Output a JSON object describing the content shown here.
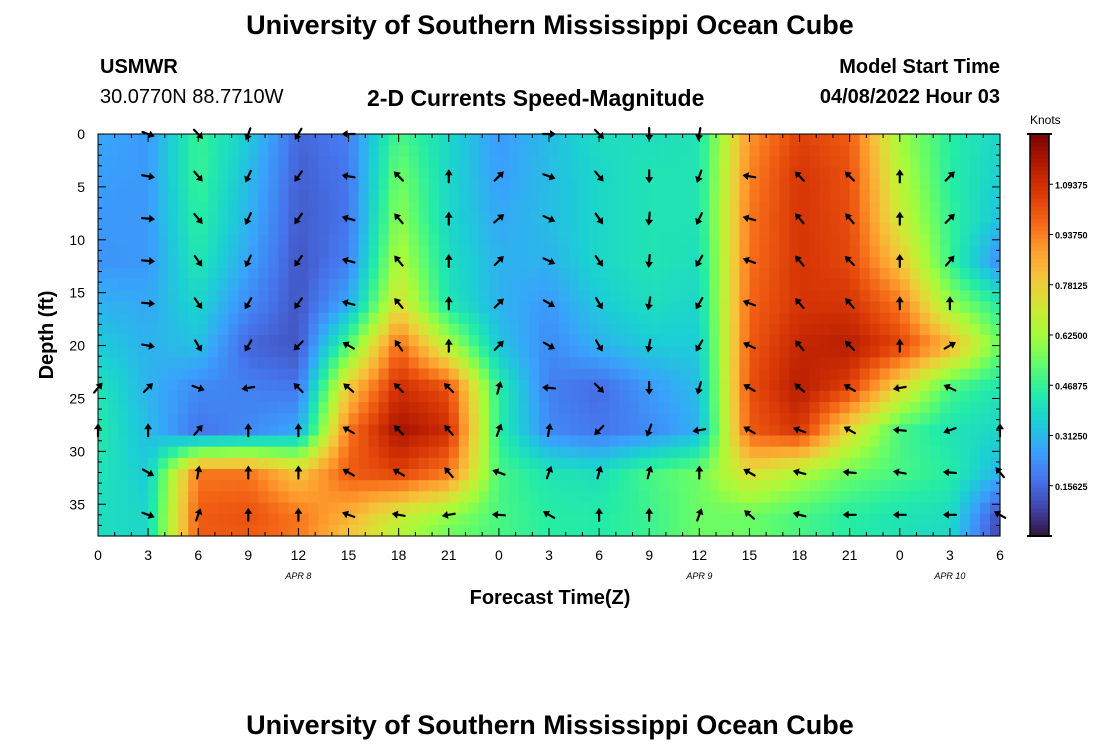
{
  "page": {
    "title": "University of Southern Mississippi Ocean Cube",
    "station_id": "USMWR",
    "station_coords": "30.0770N  88.7710W",
    "subtitle": "2-D Currents Speed-Magnitude",
    "model_start_label": "Model Start Time",
    "model_start_value": "04/08/2022 Hour 03",
    "footer_title": "University of Southern Mississippi Ocean Cube"
  },
  "colors": {
    "colormap": [
      "#30123b",
      "#4145ab",
      "#4675ed",
      "#39a2fc",
      "#1bcfd4",
      "#24eca6",
      "#61fc6c",
      "#a4fc3b",
      "#d1e834",
      "#f3c63a",
      "#fe9b2d",
      "#f36315",
      "#d93806",
      "#b11901",
      "#7a0402"
    ],
    "arrow": "#000000"
  },
  "chart_data": {
    "type": "heatmap",
    "title": "2-D Currents Speed-Magnitude",
    "xlabel": "Forecast Time(Z)",
    "ylabel": "Depth (ft)",
    "x_range": [
      0,
      54
    ],
    "y_range": [
      0,
      38
    ],
    "y_reversed": true,
    "x_ticks": [
      0,
      3,
      6,
      9,
      12,
      15,
      18,
      21,
      24,
      27,
      30,
      33,
      36,
      39,
      42,
      45,
      48,
      51,
      54
    ],
    "x_tick_labels": [
      "0",
      "3",
      "6",
      "9",
      "12",
      "15",
      "18",
      "21",
      "0",
      "3",
      "6",
      "9",
      "12",
      "15",
      "18",
      "21",
      "0",
      "3",
      "6"
    ],
    "y_ticks": [
      0,
      5,
      10,
      15,
      20,
      25,
      30,
      35
    ],
    "y_tick_labels": [
      "0",
      "5",
      "10",
      "15",
      "20",
      "25",
      "30",
      "35"
    ],
    "date_labels": [
      {
        "x": 12,
        "label": "APR 8"
      },
      {
        "x": 36,
        "label": "APR 9"
      },
      {
        "x": 51,
        "label": "APR 10"
      }
    ],
    "colorbar": {
      "title": "Knots",
      "range": [
        0,
        1.25
      ],
      "ticks": [
        0.15625,
        0.3125,
        0.46875,
        0.625,
        0.78125,
        0.9375,
        1.09375
      ],
      "tick_labels": [
        "0.15625",
        "0.31250",
        "0.46875",
        "0.62500",
        "0.78125",
        "0.93750",
        "1.09375"
      ]
    },
    "speed_grid": {
      "units": "knots",
      "times": [
        0,
        3,
        6,
        9,
        12,
        15,
        18,
        21,
        24,
        27,
        30,
        33,
        36,
        39,
        42,
        45,
        48,
        51,
        54
      ],
      "depths": [
        0,
        4,
        8,
        12,
        16,
        20,
        24,
        28,
        32,
        36,
        38
      ],
      "values": [
        [
          0.28,
          0.25,
          0.48,
          0.35,
          0.15,
          0.2,
          0.5,
          0.38,
          0.25,
          0.32,
          0.4,
          0.4,
          0.42,
          0.9,
          1.05,
          1.0,
          0.62,
          0.45,
          0.38
        ],
        [
          0.26,
          0.25,
          0.48,
          0.32,
          0.14,
          0.18,
          0.56,
          0.38,
          0.26,
          0.32,
          0.38,
          0.42,
          0.42,
          0.93,
          1.08,
          1.02,
          0.66,
          0.45,
          0.36
        ],
        [
          0.25,
          0.25,
          0.46,
          0.3,
          0.13,
          0.18,
          0.6,
          0.38,
          0.28,
          0.32,
          0.38,
          0.42,
          0.42,
          0.95,
          1.08,
          1.03,
          0.7,
          0.47,
          0.33
        ],
        [
          0.24,
          0.25,
          0.43,
          0.27,
          0.12,
          0.2,
          0.66,
          0.4,
          0.3,
          0.3,
          0.38,
          0.42,
          0.4,
          0.96,
          1.08,
          1.04,
          0.8,
          0.48,
          0.22
        ],
        [
          0.3,
          0.28,
          0.38,
          0.22,
          0.12,
          0.28,
          0.74,
          0.42,
          0.3,
          0.25,
          0.35,
          0.4,
          0.38,
          0.98,
          1.08,
          1.08,
          0.95,
          0.6,
          0.44
        ],
        [
          0.35,
          0.3,
          0.33,
          0.15,
          0.12,
          0.52,
          0.98,
          0.65,
          0.34,
          0.22,
          0.3,
          0.35,
          0.35,
          1.0,
          1.12,
          1.15,
          1.05,
          0.85,
          0.55
        ],
        [
          0.42,
          0.3,
          0.22,
          0.2,
          0.18,
          0.8,
          1.1,
          1.02,
          0.45,
          0.2,
          0.16,
          0.25,
          0.32,
          1.02,
          1.15,
          1.05,
          0.75,
          0.5,
          0.42
        ],
        [
          0.44,
          0.32,
          0.18,
          0.22,
          0.28,
          0.95,
          1.18,
          1.1,
          0.45,
          0.22,
          0.18,
          0.22,
          0.3,
          1.0,
          1.08,
          0.75,
          0.5,
          0.42,
          0.38
        ],
        [
          0.42,
          0.35,
          0.95,
          0.95,
          0.8,
          1.0,
          1.05,
          0.95,
          0.5,
          0.42,
          0.4,
          0.5,
          0.55,
          0.75,
          0.65,
          0.55,
          0.5,
          0.45,
          0.3
        ],
        [
          0.4,
          0.38,
          1.0,
          1.02,
          0.95,
          0.85,
          0.7,
          0.6,
          0.5,
          0.45,
          0.44,
          0.48,
          0.55,
          0.55,
          0.5,
          0.45,
          0.42,
          0.4,
          0.1
        ],
        [
          0.4,
          0.38,
          1.0,
          1.0,
          0.95,
          0.8,
          0.65,
          0.55,
          0.5,
          0.45,
          0.44,
          0.48,
          0.55,
          0.55,
          0.5,
          0.45,
          0.42,
          0.38,
          0.08
        ]
      ]
    },
    "current_vectors": {
      "units": "direction toward, degrees clockwise from north",
      "times": [
        0,
        3,
        6,
        9,
        12,
        15,
        18,
        21,
        24,
        27,
        30,
        33,
        36,
        39,
        42,
        45,
        48,
        51,
        54
      ],
      "depths": [
        0,
        4,
        8,
        12,
        16,
        20,
        24,
        28,
        32,
        36
      ],
      "directions": [
        [
          null,
          110,
          135,
          200,
          210,
          270,
          null,
          null,
          null,
          90,
          135,
          180,
          190,
          null,
          null,
          null,
          null,
          null,
          null
        ],
        [
          null,
          100,
          140,
          205,
          215,
          280,
          315,
          0,
          45,
          110,
          140,
          180,
          200,
          280,
          315,
          315,
          0,
          45,
          null
        ],
        [
          null,
          95,
          140,
          205,
          215,
          285,
          320,
          0,
          50,
          115,
          145,
          185,
          205,
          285,
          320,
          320,
          0,
          45,
          null
        ],
        [
          null,
          95,
          145,
          205,
          215,
          285,
          320,
          0,
          45,
          115,
          145,
          185,
          210,
          290,
          320,
          315,
          0,
          40,
          null
        ],
        [
          null,
          95,
          145,
          210,
          215,
          285,
          320,
          0,
          45,
          120,
          150,
          190,
          210,
          290,
          320,
          320,
          0,
          0,
          null
        ],
        [
          null,
          100,
          150,
          210,
          225,
          300,
          325,
          0,
          45,
          120,
          150,
          190,
          210,
          295,
          320,
          315,
          0,
          60,
          null
        ],
        [
          40,
          45,
          110,
          260,
          315,
          310,
          315,
          315,
          15,
          275,
          135,
          180,
          195,
          300,
          310,
          300,
          260,
          295,
          null
        ],
        [
          0,
          0,
          40,
          0,
          0,
          300,
          315,
          320,
          20,
          10,
          225,
          200,
          260,
          300,
          290,
          300,
          275,
          250,
          0
        ],
        [
          null,
          120,
          10,
          0,
          0,
          300,
          300,
          320,
          290,
          20,
          15,
          15,
          0,
          300,
          285,
          275,
          280,
          275,
          320
        ],
        [
          null,
          110,
          20,
          0,
          0,
          290,
          280,
          260,
          275,
          300,
          0,
          0,
          20,
          310,
          285,
          270,
          270,
          270,
          300
        ]
      ]
    }
  }
}
